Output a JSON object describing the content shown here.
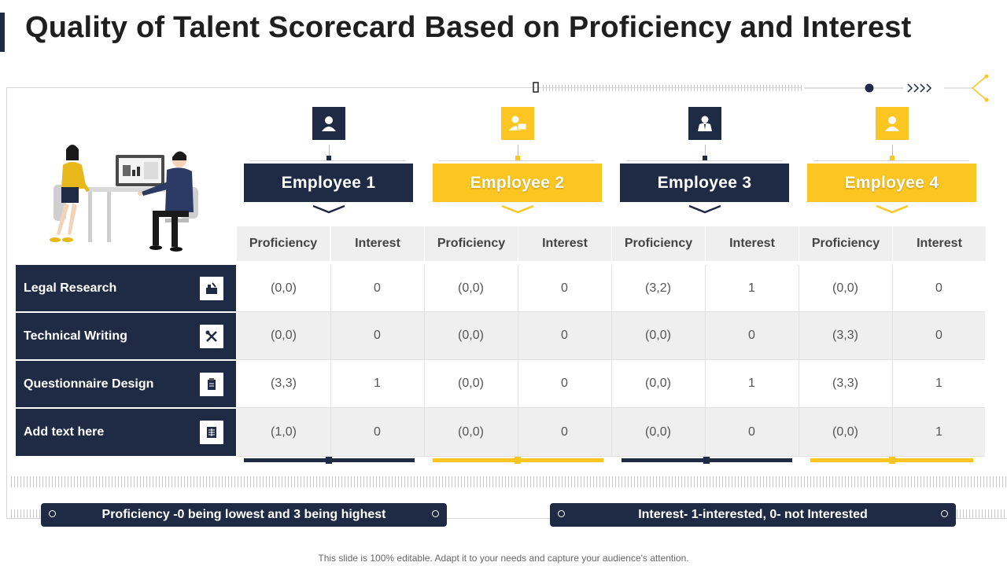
{
  "slide": {
    "title": "Quality of Talent Scorecard Based on Proficiency and Interest",
    "footer": "This slide is 100% editable. Adapt it to your needs and capture your audience's attention."
  },
  "colors": {
    "dark": "#1f2a44",
    "accent": "#fbc622",
    "subheader_bg": "#efefef",
    "alt_row_bg": "#efefef"
  },
  "employees": [
    {
      "name": "Employee  1",
      "theme": "dark",
      "icon": "person-icon"
    },
    {
      "name": "Employee  2",
      "theme": "yellow",
      "icon": "person-laptop-icon"
    },
    {
      "name": "Employee  3",
      "theme": "dark",
      "icon": "person-tie-icon"
    },
    {
      "name": "Employee  4",
      "theme": "yellow",
      "icon": "person-icon"
    }
  ],
  "table": {
    "subheaders": [
      "Proficiency",
      "Interest",
      "Proficiency",
      "Interest",
      "Proficiency",
      "Interest",
      "Proficiency",
      "Interest"
    ],
    "rows": [
      {
        "label": "Legal Research",
        "icon": "research-icon",
        "cells": [
          "(0,0)",
          "0",
          "(0,0)",
          "0",
          "(3,2)",
          "1",
          "(0,0)",
          "0"
        ]
      },
      {
        "label": "Technical Writing",
        "icon": "tools-icon",
        "cells": [
          "(0,0)",
          "0",
          "(0,0)",
          "0",
          "(0,0)",
          "0",
          "(3,3)",
          "0"
        ]
      },
      {
        "label": "Questionnaire Design",
        "icon": "clipboard-icon",
        "cells": [
          "(3,3)",
          "1",
          "(0,0)",
          "0",
          "(0,0)",
          "1",
          "(3,3)",
          "1"
        ]
      },
      {
        "label": "Add text here",
        "icon": "document-grid-icon",
        "cells": [
          "(1,0)",
          "0",
          "(0,0)",
          "0",
          "(0,0)",
          "0",
          "(0,0)",
          "1"
        ]
      }
    ]
  },
  "legends": {
    "proficiency": "Proficiency -0 being lowest and 3 being highest",
    "interest": "Interest- 1-interested, 0- not Interested"
  }
}
